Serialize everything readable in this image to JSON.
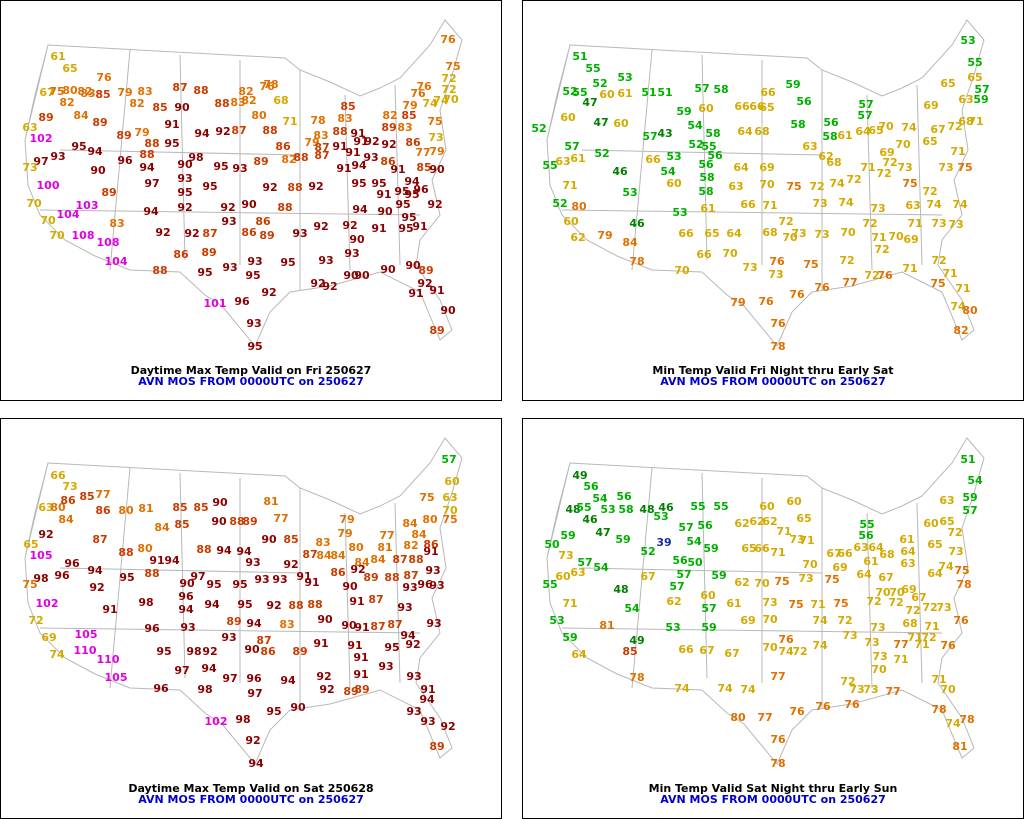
{
  "panels": [
    {
      "title": "Daytime Max Temp Valid on Fri 250627",
      "subtitle": "AVN MOS FROM 0000UTC on 250627",
      "values": [
        61,
        65,
        67,
        75,
        80,
        82,
        82,
        76,
        83,
        85,
        89,
        84,
        89,
        63,
        102,
        93,
        97,
        94,
        95,
        73,
        96,
        90,
        100,
        70,
        103,
        104,
        70,
        70,
        108,
        108,
        104,
        79,
        83,
        82,
        87,
        88,
        90,
        85,
        89,
        79,
        88,
        91,
        95,
        94,
        92,
        87,
        88,
        83,
        82,
        82,
        78,
        68,
        80,
        71,
        78,
        88,
        88,
        94,
        97,
        90,
        98,
        93,
        95,
        95,
        93,
        89,
        82,
        86,
        88,
        87,
        79,
        83,
        87,
        89,
        94,
        95,
        92,
        92,
        90,
        92,
        88,
        92,
        88,
        92,
        92,
        87,
        93,
        86,
        86,
        89,
        93,
        92,
        83,
        88,
        86,
        89,
        95,
        93,
        93,
        95,
        95,
        93,
        92,
        92,
        92,
        101,
        96,
        93,
        95,
        85,
        83,
        88,
        91,
        91,
        91,
        92,
        91,
        93,
        86,
        94,
        89,
        92,
        79,
        82,
        83,
        86,
        85,
        74,
        76,
        72,
        74,
        75,
        73,
        77,
        79,
        85,
        90,
        91,
        95,
        95,
        91,
        91,
        95,
        95,
        94,
        95,
        96,
        92,
        94,
        92,
        90,
        91,
        90,
        95,
        95,
        91,
        93,
        90,
        90,
        90,
        90,
        89,
        92,
        91,
        91,
        90,
        89,
        76,
        75,
        72,
        76,
        70,
        76
      ]
    },
    {
      "title": "Min Temp Valid Fri Night thru Early Sat",
      "subtitle": "AVN MOS FROM 0000UTC on 250627",
      "values": [
        51,
        55,
        52,
        55,
        47,
        52,
        60,
        53,
        61,
        52,
        60,
        47,
        60,
        57,
        52,
        55,
        63,
        61,
        46,
        71,
        53,
        52,
        80,
        60,
        62,
        79,
        84,
        46,
        78,
        51,
        51,
        57,
        58,
        59,
        60,
        54,
        57,
        43,
        52,
        66,
        53,
        54,
        58,
        64,
        68,
        66,
        66,
        66,
        65,
        59,
        58,
        56,
        55,
        56,
        58,
        58,
        60,
        56,
        64,
        69,
        63,
        56,
        58,
        61,
        62,
        68,
        53,
        61,
        63,
        70,
        75,
        72,
        74,
        66,
        65,
        64,
        66,
        71,
        72,
        68,
        70,
        73,
        74,
        73,
        73,
        66,
        70,
        73,
        76,
        73,
        75,
        70,
        70,
        57,
        64,
        65,
        70,
        74,
        57,
        69,
        65,
        63,
        68,
        69,
        72,
        70,
        73,
        65,
        67,
        72,
        65,
        57,
        59,
        71,
        71,
        73,
        75,
        71,
        72,
        72,
        75,
        72,
        74,
        74,
        63,
        71,
        73,
        73,
        73,
        72,
        71,
        70,
        69,
        72,
        72,
        72,
        76,
        71,
        72,
        71,
        75,
        71,
        74,
        80,
        82,
        79,
        76,
        76,
        78,
        76,
        76,
        77,
        53,
        55
      ]
    },
    {
      "title": "Daytime Max Temp Valid on Sat 250628",
      "subtitle": "AVN MOS FROM 0000UTC on 250627",
      "values": [
        66,
        73,
        63,
        80,
        86,
        85,
        77,
        86,
        84,
        92,
        87,
        65,
        105,
        96,
        94,
        96,
        98,
        92,
        75,
        91,
        102,
        72,
        69,
        105,
        74,
        110,
        110,
        105,
        80,
        81,
        84,
        85,
        85,
        85,
        80,
        88,
        91,
        94,
        88,
        95,
        90,
        97,
        98,
        96,
        94,
        96,
        93,
        90,
        90,
        88,
        89,
        81,
        77,
        85,
        90,
        94,
        94,
        88,
        93,
        95,
        95,
        93,
        93,
        92,
        91,
        91,
        84,
        87,
        83,
        94,
        95,
        92,
        88,
        88,
        90,
        95,
        98,
        92,
        93,
        89,
        87,
        90,
        86,
        89,
        91,
        94,
        83,
        97,
        94,
        97,
        96,
        98,
        96,
        97,
        94,
        92,
        92,
        90,
        95,
        98,
        102,
        92,
        94,
        79,
        79,
        80,
        84,
        84,
        77,
        81,
        84,
        84,
        87,
        88,
        86,
        92,
        89,
        90,
        91,
        87,
        88,
        87,
        93,
        93,
        93,
        96,
        93,
        90,
        91,
        87,
        87,
        95,
        94,
        92,
        93,
        91,
        91,
        91,
        89,
        89,
        93,
        93,
        91,
        94,
        93,
        93,
        92,
        89,
        57,
        60,
        63,
        75,
        70,
        75,
        80,
        86,
        84,
        91,
        82
      ]
    },
    {
      "title": "Min Temp Valid Sat Night thru Early Sun",
      "subtitle": "AVN MOS FROM 0000UTC on 250627",
      "values": [
        49,
        56,
        48,
        55,
        54,
        53,
        46,
        56,
        58,
        47,
        59,
        50,
        59,
        73,
        57,
        54,
        52,
        48,
        55,
        60,
        63,
        71,
        81,
        54,
        53,
        59,
        64,
        85,
        49,
        78,
        48,
        46,
        53,
        57,
        56,
        55,
        55,
        39,
        56,
        50,
        54,
        59,
        59,
        60,
        57,
        57,
        57,
        67,
        62,
        53,
        59,
        62,
        62,
        62,
        60,
        60,
        65,
        71,
        65,
        66,
        71,
        73,
        71,
        62,
        70,
        75,
        70,
        73,
        67,
        66,
        69,
        75,
        71,
        73,
        75,
        61,
        66,
        67,
        67,
        69,
        70,
        76,
        74,
        70,
        72,
        74,
        74,
        72,
        75,
        73,
        55,
        56,
        63,
        64,
        61,
        68,
        64,
        67,
        70,
        64,
        63,
        69,
        72,
        70,
        67,
        72,
        61,
        60,
        65,
        65,
        72,
        73,
        74,
        75,
        64,
        78,
        72,
        72,
        73,
        68,
        71,
        72,
        76,
        71,
        76,
        73,
        73,
        73,
        70,
        77,
        71,
        77,
        73,
        73,
        72,
        71,
        71,
        70,
        78,
        74,
        78,
        81,
        80,
        77,
        76,
        78,
        74,
        74,
        74,
        77,
        76,
        76,
        76,
        51,
        54,
        59,
        63,
        57
      ]
    }
  ],
  "color_scale": [
    {
      "min": 100,
      "color": "#e000e0"
    },
    {
      "min": 90,
      "color": "#8b0000"
    },
    {
      "min": 85,
      "color": "#c83c00"
    },
    {
      "min": 75,
      "color": "#e07000"
    },
    {
      "min": 60,
      "color": "#d4aa00"
    },
    {
      "min": 50,
      "color": "#00b000"
    },
    {
      "min": 40,
      "color": "#008000"
    },
    {
      "min": 0,
      "color": "#1030a0"
    }
  ]
}
